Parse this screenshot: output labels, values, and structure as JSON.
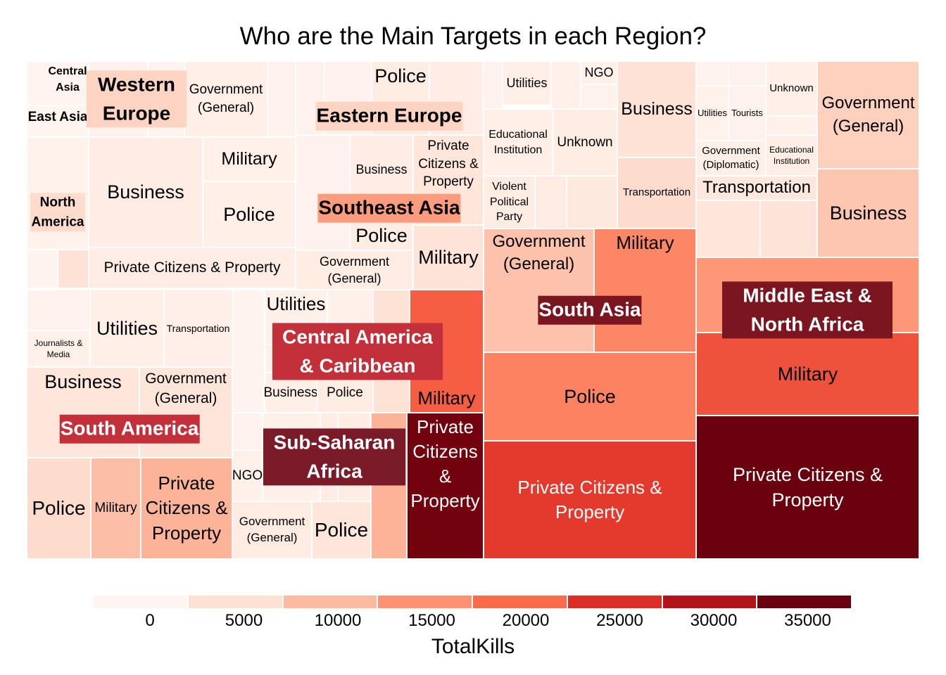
{
  "chart_data": {
    "type": "treemap",
    "title": "Who are the Main Targets in each Region?",
    "legend": {
      "title": "TotalKills",
      "position": "bottom",
      "ticks": [
        0,
        5000,
        10000,
        15000,
        20000,
        25000,
        30000,
        35000
      ],
      "colors": [
        "#FFF5F0",
        "#FEE0D2",
        "#FCBBA1",
        "#FC9272",
        "#FB6A4A",
        "#DE2D26",
        "#B21218",
        "#6A000D"
      ]
    },
    "regions": [
      {
        "name": "Central Asia",
        "label_bg": "",
        "tiles": [
          {
            "target": "",
            "kills": 200
          }
        ]
      },
      {
        "name": "East Asia",
        "label_bg": "",
        "tiles": [
          {
            "target": "",
            "kills": 300
          }
        ]
      },
      {
        "name": "North America",
        "label_bg": "#FDDCCE",
        "tiles": [
          {
            "target": "",
            "kills": 800
          },
          {
            "target": "",
            "kills": 500
          },
          {
            "target": "",
            "kills": 4500
          }
        ]
      },
      {
        "name": "Western Europe",
        "label_bg": "#FDD3C1",
        "tiles": [
          {
            "target": "",
            "kills": 600
          },
          {
            "target": "",
            "kills": 400
          },
          {
            "target": "Government (General)",
            "kills": 1500
          },
          {
            "target": "",
            "kills": 700
          },
          {
            "target": "Business",
            "kills": 1800
          },
          {
            "target": "Military",
            "kills": 1200
          },
          {
            "target": "Police",
            "kills": 1500
          },
          {
            "target": "Private Citizens & Property",
            "kills": 1900
          }
        ]
      },
      {
        "name": "Eastern Europe",
        "label_bg": "#FDD3C1",
        "tiles": [
          {
            "target": "",
            "kills": 600
          },
          {
            "target": "",
            "kills": 900
          },
          {
            "target": "Police",
            "kills": 2200
          },
          {
            "target": "",
            "kills": 1800
          }
        ]
      },
      {
        "name": "Southeast Asia",
        "label_bg": "#FC9C7E",
        "tiles": [
          {
            "target": "",
            "kills": 900
          },
          {
            "target": "Business",
            "kills": 1800
          },
          {
            "target": "Police",
            "kills": 2000
          },
          {
            "target": "Government (General)",
            "kills": 2100
          },
          {
            "target": "Private Citizens & Property",
            "kills": 3500
          },
          {
            "target": "Military",
            "kills": 4000
          }
        ]
      },
      {
        "name": "South Asia",
        "label_bg": "#7B1520",
        "tiles": [
          {
            "target": "",
            "kills": 600
          },
          {
            "target": "Utilities",
            "kills": 1500
          },
          {
            "target": "",
            "kills": 1200
          },
          {
            "target": "NGO",
            "kills": 1000
          },
          {
            "target": "",
            "kills": 900
          },
          {
            "target": "Educational Institution",
            "kills": 1500
          },
          {
            "target": "Unknown",
            "kills": 2000
          },
          {
            "target": "Violent Political Party",
            "kills": 2000
          },
          {
            "target": "",
            "kills": 2300
          },
          {
            "target": "",
            "kills": 2800
          },
          {
            "target": "Business",
            "kills": 4500
          },
          {
            "target": "Transportation",
            "kills": 5500
          },
          {
            "target": "Government (General)",
            "kills": 9000
          },
          {
            "target": "Military",
            "kills": 16500
          },
          {
            "target": "Police",
            "kills": 17000
          },
          {
            "target": "Private Citizens & Property",
            "kills": 24000
          }
        ]
      },
      {
        "name": "Middle East & North Africa",
        "label_bg": "#7B1520",
        "tiles": [
          {
            "target": "",
            "kills": 400
          },
          {
            "target": "",
            "kills": 600
          },
          {
            "target": "Unknown",
            "kills": 1500
          },
          {
            "target": "Tourists",
            "kills": 900
          },
          {
            "target": "Utilities",
            "kills": 800
          },
          {
            "target": "",
            "kills": 1100
          },
          {
            "target": "Government (Diplomatic)",
            "kills": 1500
          },
          {
            "target": "Educational Institution",
            "kills": 1600
          },
          {
            "target": "Transportation",
            "kills": 3000
          },
          {
            "target": "",
            "kills": 3500
          },
          {
            "target": "",
            "kills": 4000
          },
          {
            "target": "Government (General)",
            "kills": 7000
          },
          {
            "target": "Business",
            "kills": 8500
          },
          {
            "target": "",
            "kills": 14500
          },
          {
            "target": "Military",
            "kills": 22000
          },
          {
            "target": "Private Citizens & Property",
            "kills": 39000
          }
        ]
      },
      {
        "name": "Central America & Caribbean",
        "label_bg": "#C4303A",
        "tiles": [
          {
            "target": "",
            "kills": 500
          },
          {
            "target": "Utilities",
            "kills": 1200
          },
          {
            "target": "",
            "kills": 1000
          },
          {
            "target": "",
            "kills": 1100
          },
          {
            "target": "Business",
            "kills": 1500
          },
          {
            "target": "Police",
            "kills": 2200
          },
          {
            "target": "",
            "kills": 4500
          },
          {
            "target": "Military",
            "kills": 21000
          }
        ]
      },
      {
        "name": "South America",
        "label_bg": "#C4303A",
        "tiles": [
          {
            "target": "",
            "kills": 700
          },
          {
            "target": "Journalists & Media",
            "kills": 1000
          },
          {
            "target": "Utilities",
            "kills": 1500
          },
          {
            "target": "Transportation",
            "kills": 1400
          },
          {
            "target": "Business",
            "kills": 3500
          },
          {
            "target": "Government (General)",
            "kills": 3800
          },
          {
            "target": "Police",
            "kills": 5500
          },
          {
            "target": "Military",
            "kills": 9500
          },
          {
            "target": "Private Citizens & Property",
            "kills": 11000
          }
        ]
      },
      {
        "name": "Sub-Saharan Africa",
        "label_bg": "#7B1A28",
        "tiles": [
          {
            "target": "",
            "kills": 700
          },
          {
            "target": "NGO",
            "kills": 1000
          },
          {
            "target": "",
            "kills": 1200
          },
          {
            "target": "",
            "kills": 1800
          },
          {
            "target": "",
            "kills": 2200
          },
          {
            "target": "Government (General)",
            "kills": 2500
          },
          {
            "target": "Police",
            "kills": 3500
          },
          {
            "target": "",
            "kills": 11000
          },
          {
            "target": "Private Citizens & Property",
            "kills": 34500
          }
        ]
      }
    ]
  }
}
